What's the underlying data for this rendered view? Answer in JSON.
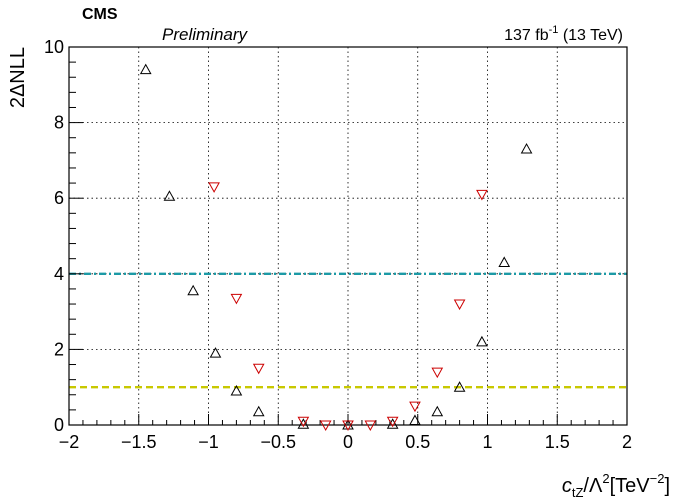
{
  "header": {
    "experiment": "CMS",
    "status": "Preliminary",
    "lumi_value": "137 fb",
    "lumi_exp": "-1",
    "energy": " (13 TeV)"
  },
  "axes": {
    "ylabel": "2ΔNLL",
    "xlabel_var": "c",
    "xlabel_sub": "tZ",
    "xlabel_mid": "/Λ",
    "xlabel_sq": "2",
    "xlabel_unit": "[TeV",
    "xlabel_exp": "−2",
    "xlabel_close": "]"
  },
  "chart_data": {
    "type": "scatter",
    "xlim": [
      -2,
      2
    ],
    "ylim": [
      0,
      10
    ],
    "x_ticks": [
      -2,
      -1.5,
      -1,
      -0.5,
      0,
      0.5,
      1,
      1.5,
      2
    ],
    "x_tick_labels": [
      "−2",
      "−1.5",
      "−1",
      "−0.5",
      "0",
      "0.5",
      "1",
      "1.5",
      "2"
    ],
    "y_ticks": [
      0,
      2,
      4,
      6,
      8,
      10
    ],
    "y_tick_labels": [
      "0",
      "2",
      "4",
      "6",
      "8",
      "10"
    ],
    "grid": true,
    "series": [
      {
        "marker": "triangle-up",
        "color": "#000000",
        "x": [
          -1.45,
          -1.28,
          -1.11,
          -0.95,
          -0.8,
          -0.64,
          -0.32,
          0.0,
          0.32,
          0.48,
          0.64,
          0.8,
          0.96,
          1.12,
          1.28
        ],
        "y": [
          9.4,
          6.05,
          3.55,
          1.9,
          0.9,
          0.35,
          0.02,
          0.0,
          0.02,
          0.12,
          0.35,
          1.0,
          2.2,
          4.3,
          7.3
        ]
      },
      {
        "marker": "triangle-down",
        "color": "#cc0000",
        "x": [
          -0.96,
          -0.8,
          -0.64,
          -0.32,
          -0.16,
          0.0,
          0.16,
          0.32,
          0.48,
          0.64,
          0.8,
          0.96
        ],
        "y": [
          6.3,
          3.35,
          1.5,
          0.1,
          0.0,
          0.0,
          0.0,
          0.1,
          0.5,
          1.4,
          3.2,
          6.1
        ]
      }
    ],
    "reference_lines": [
      {
        "y": 4,
        "color": "#1c9aa6",
        "style": "dash-dot"
      },
      {
        "y": 1,
        "color": "#c8c800",
        "style": "dashed"
      }
    ]
  }
}
